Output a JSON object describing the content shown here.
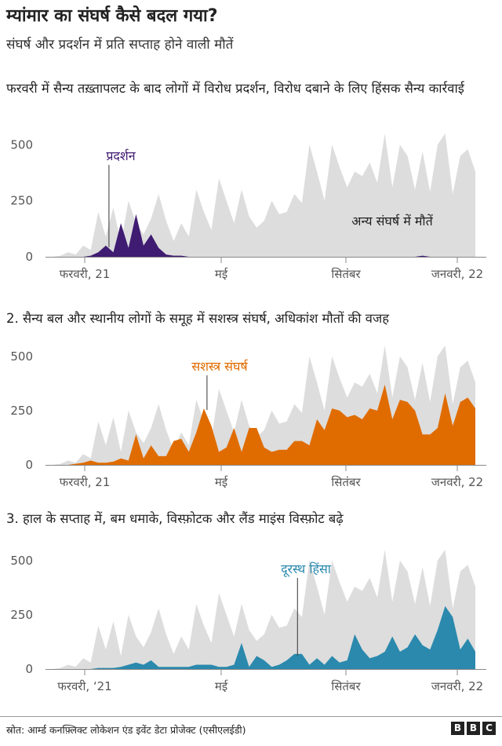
{
  "header": {
    "title": "म्यांमार का संघर्ष कैसे बदल गया?",
    "subtitle": "संघर्ष और प्रदर्शन में प्रति सप्ताह होने वाली मौतें"
  },
  "footer": {
    "source": "स्रोत: आर्म्ड कनफ़्लिक्ट लोकेशन एंड इवेंट डेटा प्रोजेक्ट (एसीएलईडी)",
    "logo": [
      "B",
      "B",
      "C"
    ]
  },
  "colors": {
    "background_series": "#dddddd",
    "protest": "#3f1b72",
    "armed": "#e06c00",
    "remote": "#2a89ad",
    "axis": "#666666"
  },
  "chart_data": [
    {
      "type": "area",
      "title": "फरवरी में सैन्य तख़्तापलट के बाद लोगों में विरोध प्रदर्शन, विरोध दबाने के लिए हिंसक सैन्य कार्रवाई",
      "xlabel": "",
      "ylabel": "",
      "ylim": [
        0,
        550
      ],
      "yticks": [
        "0",
        "250",
        "500"
      ],
      "xticks": [
        "फरवरी, 21",
        "मई",
        "सितंबर",
        "जनवरी, 22"
      ],
      "grid": false,
      "total": {
        "name": "अन्य संघर्ष में मौतें",
        "values": [
          0,
          0,
          5,
          20,
          10,
          50,
          30,
          200,
          90,
          220,
          60,
          250,
          150,
          100,
          170,
          280,
          160,
          70,
          150,
          90,
          300,
          200,
          120,
          350,
          250,
          150,
          300,
          180,
          130,
          160,
          250,
          190,
          200,
          280,
          240,
          500,
          380,
          250,
          500,
          400,
          310,
          380,
          360,
          420,
          330,
          600,
          310,
          500,
          450,
          300,
          470,
          290,
          500,
          570,
          280,
          450,
          480,
          380
        ]
      },
      "highlight": {
        "name": "प्रदर्शन",
        "color_key": "protest",
        "values": [
          0,
          0,
          0,
          0,
          0,
          0,
          5,
          20,
          50,
          20,
          150,
          40,
          190,
          50,
          100,
          40,
          10,
          5,
          5,
          0,
          0,
          0,
          0,
          0,
          0,
          0,
          0,
          0,
          0,
          0,
          0,
          0,
          0,
          0,
          0,
          0,
          0,
          0,
          0,
          0,
          0,
          0,
          0,
          0,
          0,
          0,
          0,
          0,
          0,
          0,
          5,
          0,
          0,
          0,
          0,
          0,
          0,
          0
        ]
      }
    },
    {
      "type": "area",
      "title": "2. सैन्य बल और स्थानीय लोगों के समूह में सशस्त्र संघर्ष, अधिकांश मौतों की वजह",
      "xlabel": "",
      "ylabel": "",
      "ylim": [
        0,
        550
      ],
      "yticks": [
        "0",
        "250",
        "500"
      ],
      "xticks": [
        "फरवरी, 21",
        "मई",
        "सितंबर",
        "जनवरी, 22"
      ],
      "grid": false,
      "total": {
        "values": [
          0,
          0,
          5,
          20,
          10,
          50,
          30,
          200,
          90,
          220,
          60,
          250,
          150,
          100,
          170,
          280,
          160,
          70,
          150,
          90,
          300,
          200,
          120,
          350,
          250,
          150,
          300,
          180,
          130,
          160,
          250,
          190,
          200,
          280,
          240,
          500,
          380,
          250,
          500,
          400,
          310,
          380,
          360,
          420,
          330,
          600,
          310,
          500,
          450,
          300,
          470,
          290,
          500,
          570,
          280,
          450,
          480,
          380
        ]
      },
      "highlight": {
        "name": "सशस्त्र संघर्ष",
        "color_key": "armed",
        "values": [
          0,
          0,
          0,
          0,
          5,
          10,
          20,
          10,
          10,
          15,
          30,
          20,
          140,
          30,
          90,
          40,
          40,
          110,
          120,
          60,
          150,
          260,
          180,
          60,
          80,
          170,
          60,
          170,
          170,
          80,
          60,
          70,
          70,
          110,
          110,
          90,
          210,
          160,
          260,
          250,
          220,
          230,
          210,
          260,
          250,
          370,
          210,
          300,
          290,
          250,
          140,
          140,
          170,
          330,
          180,
          290,
          310,
          260
        ]
      }
    },
    {
      "type": "area",
      "title": "3. हाल के सप्ताह में, बम धमाके, विस्फ़ोटक और लैंड माइंस विस्फ़ोट बढ़े",
      "xlabel": "",
      "ylabel": "",
      "ylim": [
        0,
        550
      ],
      "yticks": [
        "0",
        "250",
        "500"
      ],
      "xticks": [
        "फरवरी, ‘21",
        "मई",
        "सितंबर",
        "जनवरी, 22"
      ],
      "grid": false,
      "total": {
        "values": [
          0,
          0,
          5,
          20,
          10,
          50,
          30,
          200,
          90,
          220,
          60,
          250,
          150,
          100,
          170,
          280,
          160,
          70,
          150,
          90,
          300,
          200,
          120,
          350,
          250,
          150,
          300,
          180,
          130,
          160,
          250,
          190,
          200,
          280,
          240,
          500,
          380,
          250,
          500,
          400,
          310,
          380,
          360,
          420,
          330,
          600,
          310,
          500,
          450,
          300,
          470,
          290,
          500,
          570,
          280,
          450,
          480,
          380
        ]
      },
      "highlight": {
        "name": "दूरस्थ हिंसा",
        "color_key": "remote",
        "values": [
          0,
          0,
          0,
          0,
          0,
          0,
          0,
          5,
          5,
          5,
          10,
          20,
          30,
          20,
          40,
          10,
          10,
          10,
          10,
          10,
          20,
          20,
          20,
          10,
          10,
          20,
          120,
          10,
          60,
          40,
          10,
          20,
          40,
          70,
          70,
          20,
          50,
          20,
          60,
          30,
          40,
          160,
          90,
          50,
          60,
          80,
          150,
          80,
          100,
          160,
          110,
          90,
          180,
          290,
          240,
          90,
          140,
          80
        ]
      }
    }
  ]
}
